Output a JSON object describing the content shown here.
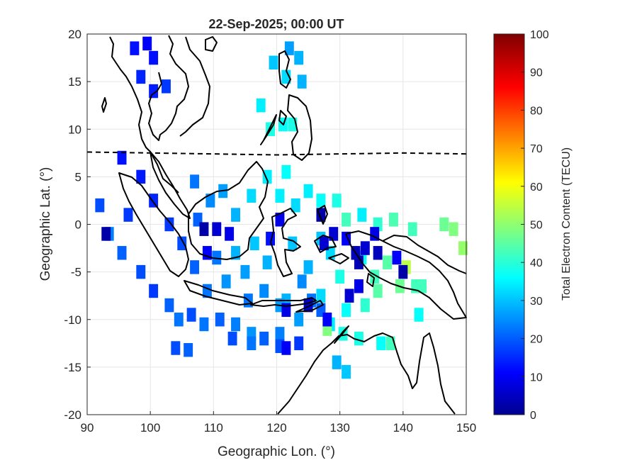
{
  "chart_data": {
    "type": "heatmap",
    "title": "22-Sep-2025; 00:00 UT",
    "xlabel": "Geographic Lon. (°)",
    "ylabel": "Geographic Lat. (°)",
    "colorbar_label": "Total Electron Content (TECU)",
    "xlim": [
      90,
      150
    ],
    "ylim": [
      -20,
      20
    ],
    "clim": [
      0,
      100
    ],
    "colormap": "jet",
    "grid": true,
    "x_ticks": [
      "90",
      "100",
      "110",
      "120",
      "130",
      "140",
      "150"
    ],
    "y_ticks": [
      "20",
      "15",
      "10",
      "5",
      "0",
      "-5",
      "-10",
      "-15",
      "-20"
    ],
    "colorbar_ticks": [
      "100",
      "90",
      "80",
      "70",
      "60",
      "50",
      "40",
      "30",
      "20",
      "10",
      "0"
    ],
    "magnetic_equator": [
      [
        90,
        7.6
      ],
      [
        100,
        7.5
      ],
      [
        110,
        7.4
      ],
      [
        120,
        7.3
      ],
      [
        130,
        7.4
      ],
      [
        140,
        7.5
      ],
      [
        150,
        7.4
      ]
    ],
    "cells": [
      {
        "lon": 97.5,
        "lat": 18.5,
        "tec": 14
      },
      {
        "lon": 99.5,
        "lat": 19.0,
        "tec": 12
      },
      {
        "lon": 100.5,
        "lat": 17.5,
        "tec": 14
      },
      {
        "lon": 98.5,
        "lat": 15.5,
        "tec": 16
      },
      {
        "lon": 100.5,
        "lat": 14.0,
        "tec": 15
      },
      {
        "lon": 102.5,
        "lat": 14.5,
        "tec": 18
      },
      {
        "lon": 122.0,
        "lat": 18.5,
        "tec": 28
      },
      {
        "lon": 119.5,
        "lat": 17.0,
        "tec": 32
      },
      {
        "lon": 123.5,
        "lat": 17.5,
        "tec": 30
      },
      {
        "lon": 121.5,
        "lat": 15.5,
        "tec": 34
      },
      {
        "lon": 124.0,
        "lat": 15.0,
        "tec": 30
      },
      {
        "lon": 117.5,
        "lat": 12.5,
        "tec": 36
      },
      {
        "lon": 121.0,
        "lat": 10.5,
        "tec": 38
      },
      {
        "lon": 119.0,
        "lat": 10.0,
        "tec": 40
      },
      {
        "lon": 122.5,
        "lat": 10.5,
        "tec": 40
      },
      {
        "lon": 96.5,
        "lat": 1.0,
        "tec": 18
      },
      {
        "lon": 92.0,
        "lat": 2.0,
        "tec": 20
      },
      {
        "lon": 93.5,
        "lat": -1.0,
        "tec": 25
      },
      {
        "lon": 95.5,
        "lat": -3.0,
        "tec": 22
      },
      {
        "lon": 98.5,
        "lat": -5.0,
        "tec": 20
      },
      {
        "lon": 100.5,
        "lat": -7.0,
        "tec": 18
      },
      {
        "lon": 103.0,
        "lat": -8.5,
        "tec": 22
      },
      {
        "lon": 104.5,
        "lat": -10.0,
        "tec": 24
      },
      {
        "lon": 106.5,
        "lat": -9.5,
        "tec": 20
      },
      {
        "lon": 108.5,
        "lat": -10.5,
        "tec": 24
      },
      {
        "lon": 111.0,
        "lat": -10.0,
        "tec": 22
      },
      {
        "lon": 113.5,
        "lat": -10.5,
        "tec": 25
      },
      {
        "lon": 116.0,
        "lat": -11.5,
        "tec": 27
      },
      {
        "lon": 118.0,
        "lat": -12.0,
        "tec": 22
      },
      {
        "lon": 120.5,
        "lat": -11.5,
        "tec": 25
      },
      {
        "lon": 123.5,
        "lat": -10.0,
        "tec": 28
      },
      {
        "lon": 121.5,
        "lat": -8.0,
        "tec": 30
      },
      {
        "lon": 124.0,
        "lat": -6.0,
        "tec": 26
      },
      {
        "lon": 104.0,
        "lat": -13.0,
        "tec": 20
      },
      {
        "lon": 106.0,
        "lat": -13.2,
        "tec": 22
      },
      {
        "lon": 113.0,
        "lat": -12.0,
        "tec": 20
      },
      {
        "lon": 116.0,
        "lat": -12.5,
        "tec": 24
      },
      {
        "lon": 120.5,
        "lat": -12.8,
        "tec": 20
      },
      {
        "lon": 123.5,
        "lat": -12.5,
        "tec": 18
      },
      {
        "lon": 121.5,
        "lat": -13.0,
        "tec": 12
      },
      {
        "lon": 109.0,
        "lat": -7.0,
        "tec": 24
      },
      {
        "lon": 112.0,
        "lat": -6.0,
        "tec": 27
      },
      {
        "lon": 115.0,
        "lat": -5.0,
        "tec": 28
      },
      {
        "lon": 113.5,
        "lat": -3.0,
        "tec": 30
      },
      {
        "lon": 116.5,
        "lat": -2.0,
        "tec": 32
      },
      {
        "lon": 118.5,
        "lat": -4.0,
        "tec": 30
      },
      {
        "lon": 110.5,
        "lat": -3.5,
        "tec": 24
      },
      {
        "lon": 107.0,
        "lat": -4.5,
        "tec": 22
      },
      {
        "lon": 105.0,
        "lat": -2.0,
        "tec": 20
      },
      {
        "lon": 103.0,
        "lat": 0.0,
        "tec": 18
      },
      {
        "lon": 100.5,
        "lat": 2.5,
        "tec": 16
      },
      {
        "lon": 98.5,
        "lat": 5.0,
        "tec": 15
      },
      {
        "lon": 95.5,
        "lat": 7.0,
        "tec": 14
      },
      {
        "lon": 107.5,
        "lat": 0.5,
        "tec": 22
      },
      {
        "lon": 109.5,
        "lat": 2.5,
        "tec": 26
      },
      {
        "lon": 111.5,
        "lat": 3.5,
        "tec": 28
      },
      {
        "lon": 107.0,
        "lat": 4.5,
        "tec": 24
      },
      {
        "lon": 113.5,
        "lat": 1.0,
        "tec": 30
      },
      {
        "lon": 116.0,
        "lat": 3.0,
        "tec": 34
      },
      {
        "lon": 118.5,
        "lat": 5.0,
        "tec": 36
      },
      {
        "lon": 120.5,
        "lat": 3.0,
        "tec": 36
      },
      {
        "lon": 121.5,
        "lat": 5.5,
        "tec": 38
      },
      {
        "lon": 123.0,
        "lat": 2.0,
        "tec": 34
      },
      {
        "lon": 125.0,
        "lat": 3.5,
        "tec": 36
      },
      {
        "lon": 127.0,
        "lat": 2.5,
        "tec": 38
      },
      {
        "lon": 129.5,
        "lat": 2.5,
        "tec": 40
      },
      {
        "lon": 131.0,
        "lat": 0.5,
        "tec": 44
      },
      {
        "lon": 133.5,
        "lat": 1.0,
        "tec": 36
      },
      {
        "lon": 136.0,
        "lat": 0.0,
        "tec": 42
      },
      {
        "lon": 138.5,
        "lat": 0.5,
        "tec": 45
      },
      {
        "lon": 141.5,
        "lat": -0.5,
        "tec": 44
      },
      {
        "lon": 146.5,
        "lat": 0.0,
        "tec": 48
      },
      {
        "lon": 148.0,
        "lat": -0.5,
        "tec": 50
      },
      {
        "lon": 149.5,
        "lat": -2.5,
        "tec": 52
      },
      {
        "lon": 122.5,
        "lat": -2.0,
        "tec": 32
      },
      {
        "lon": 125.0,
        "lat": -4.5,
        "tec": 30
      },
      {
        "lon": 127.0,
        "lat": -1.5,
        "tec": 32
      },
      {
        "lon": 128.5,
        "lat": -3.0,
        "tec": 34
      },
      {
        "lon": 130.0,
        "lat": -5.5,
        "tec": 40
      },
      {
        "lon": 133.5,
        "lat": -3.5,
        "tec": 38
      },
      {
        "lon": 135.5,
        "lat": -5.5,
        "tec": 44
      },
      {
        "lon": 137.5,
        "lat": -4.0,
        "tec": 46
      },
      {
        "lon": 139.5,
        "lat": -6.5,
        "tec": 48
      },
      {
        "lon": 142.0,
        "lat": -6.5,
        "tec": 44
      },
      {
        "lon": 136.0,
        "lat": -7.0,
        "tec": 46
      },
      {
        "lon": 134.0,
        "lat": -8.5,
        "tec": 42
      },
      {
        "lon": 131.0,
        "lat": -9.0,
        "tec": 38
      },
      {
        "lon": 128.5,
        "lat": -10.5,
        "tec": 36
      },
      {
        "lon": 130.5,
        "lat": -11.5,
        "tec": 40
      },
      {
        "lon": 133.0,
        "lat": -12.0,
        "tec": 40
      },
      {
        "lon": 136.5,
        "lat": -12.5,
        "tec": 38
      },
      {
        "lon": 138.0,
        "lat": -12.5,
        "tec": 44
      },
      {
        "lon": 128.0,
        "lat": -11.0,
        "tec": 50
      },
      {
        "lon": 129.5,
        "lat": -14.5,
        "tec": 30
      },
      {
        "lon": 131.0,
        "lat": -15.5,
        "tec": 32
      },
      {
        "lon": 142.5,
        "lat": -9.5,
        "tec": 38
      },
      {
        "lon": 143.0,
        "lat": -6.5,
        "tec": 44
      },
      {
        "lon": 140.5,
        "lat": -4.5,
        "tec": 56
      },
      {
        "lon": 127.0,
        "lat": -7.5,
        "tec": 34
      },
      {
        "lon": 125.5,
        "lat": -8.0,
        "tec": 24
      },
      {
        "lon": 120.5,
        "lat": -8.5,
        "tec": 28
      },
      {
        "lon": 118.0,
        "lat": -7.0,
        "tec": 26
      },
      {
        "lon": 115.5,
        "lat": -8.0,
        "tec": 24
      },
      {
        "lon": 127.0,
        "lat": -9.0,
        "tec": 22
      },
      {
        "lon": 93.0,
        "lat": -1.0,
        "tec": 4
      },
      {
        "lon": 108.5,
        "lat": -0.5,
        "tec": 4
      },
      {
        "lon": 110.5,
        "lat": -0.5,
        "tec": 8
      },
      {
        "lon": 112.5,
        "lat": -1.0,
        "tec": 10
      },
      {
        "lon": 109.0,
        "lat": -3.0,
        "tec": 12
      },
      {
        "lon": 120.5,
        "lat": 0.5,
        "tec": 10
      },
      {
        "lon": 119.0,
        "lat": -1.5,
        "tec": 14
      },
      {
        "lon": 127.0,
        "lat": 1.0,
        "tec": 4
      },
      {
        "lon": 127.5,
        "lat": -2.0,
        "tec": 8
      },
      {
        "lon": 129.0,
        "lat": -1.0,
        "tec": 8
      },
      {
        "lon": 131.0,
        "lat": -1.5,
        "tec": 12
      },
      {
        "lon": 132.5,
        "lat": -3.0,
        "tec": 6
      },
      {
        "lon": 134.0,
        "lat": -2.5,
        "tec": 8
      },
      {
        "lon": 136.0,
        "lat": -3.0,
        "tec": 6
      },
      {
        "lon": 135.5,
        "lat": -1.0,
        "tec": 10
      },
      {
        "lon": 140.0,
        "lat": -5.0,
        "tec": 4
      },
      {
        "lon": 133.0,
        "lat": -4.0,
        "tec": 5
      },
      {
        "lon": 125.0,
        "lat": -8.5,
        "tec": 8
      },
      {
        "lon": 121.5,
        "lat": -9.0,
        "tec": 10
      },
      {
        "lon": 128.0,
        "lat": -10.0,
        "tec": 12
      },
      {
        "lon": 131.5,
        "lat": -7.5,
        "tec": 8
      },
      {
        "lon": 133.0,
        "lat": -6.5,
        "tec": 10
      },
      {
        "lon": 139.0,
        "lat": -3.5,
        "tec": 12
      }
    ]
  }
}
